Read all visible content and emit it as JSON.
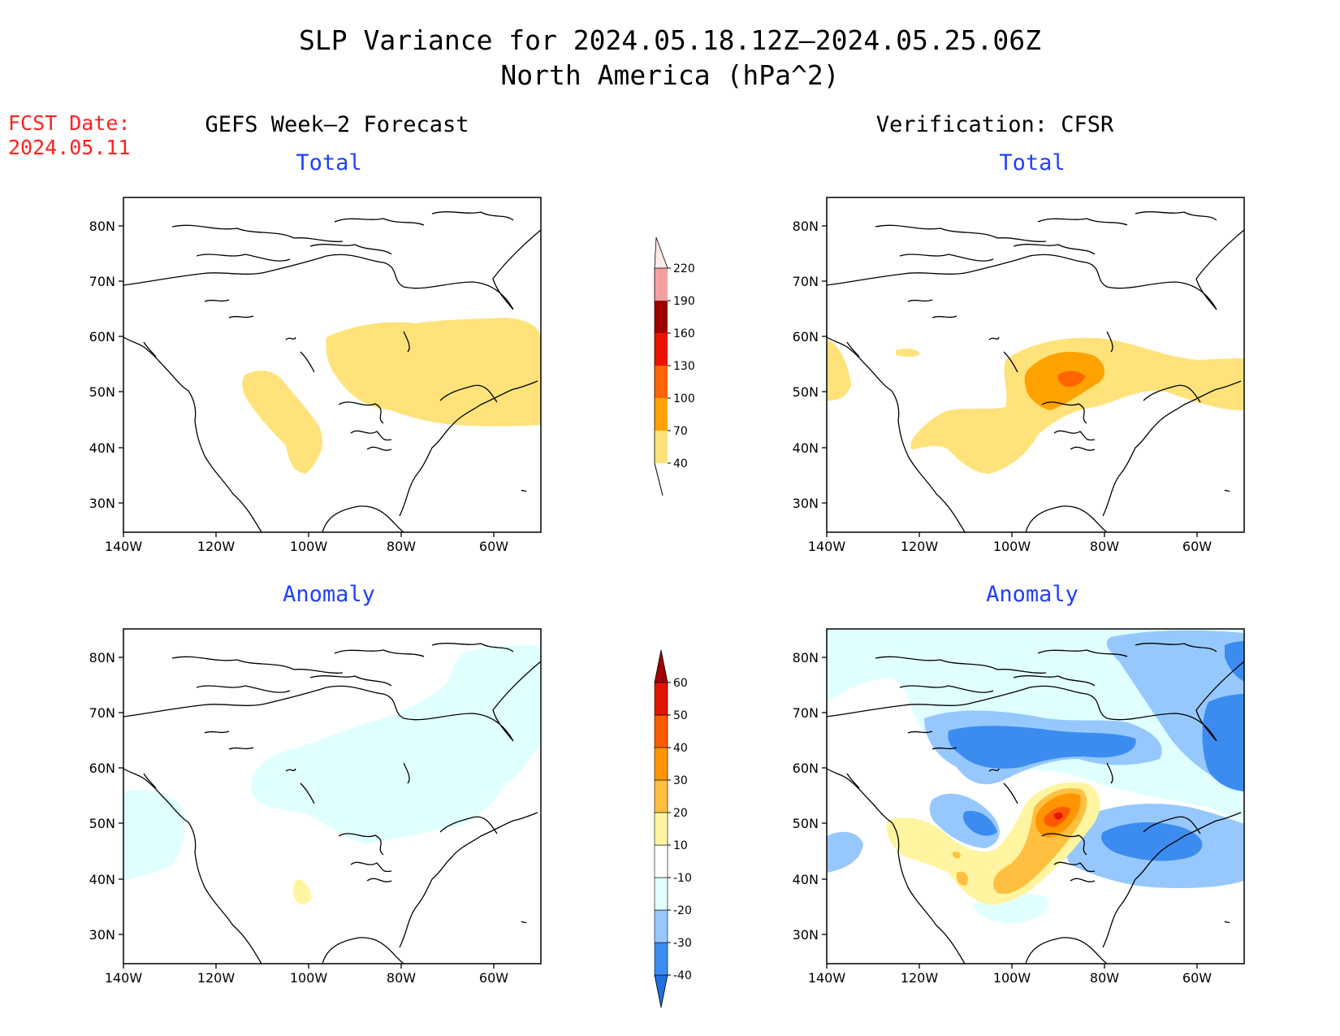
{
  "header": {
    "title_line1": "SLP Variance for 2024.05.18.12Z–2024.05.25.06Z",
    "title_line2": "North America (hPa^2)"
  },
  "fcst": {
    "label": "FCST Date:",
    "date": "2024.05.11"
  },
  "columns": {
    "left": "GEFS Week–2 Forecast",
    "right": "Verification: CFSR"
  },
  "panel_titles": {
    "total": "Total",
    "anomaly": "Anomaly"
  },
  "axes": {
    "lat_labels": [
      "80N",
      "70N",
      "60N",
      "50N",
      "40N",
      "30N"
    ],
    "lon_labels": [
      "140W",
      "120W",
      "100W",
      "80W",
      "60W"
    ]
  },
  "colorbar_total": {
    "levels": [
      "40",
      "70",
      "100",
      "130",
      "160",
      "190",
      "220"
    ],
    "colors": [
      "#ffe27a",
      "#ffa200",
      "#ff6400",
      "#e81400",
      "#a00000",
      "#f4a0a0",
      "#ffe8e8"
    ]
  },
  "colorbar_anomaly": {
    "levels": [
      "-40",
      "-30",
      "-20",
      "-10",
      "10",
      "20",
      "30",
      "40",
      "50",
      "60"
    ],
    "colors": [
      "#1f6fe0",
      "#3c8cf0",
      "#96c8ff",
      "#e0ffff",
      "#ffffff",
      "#fff5a0",
      "#ffc040",
      "#ff9600",
      "#ff5a00",
      "#e01400",
      "#a00000"
    ]
  }
}
